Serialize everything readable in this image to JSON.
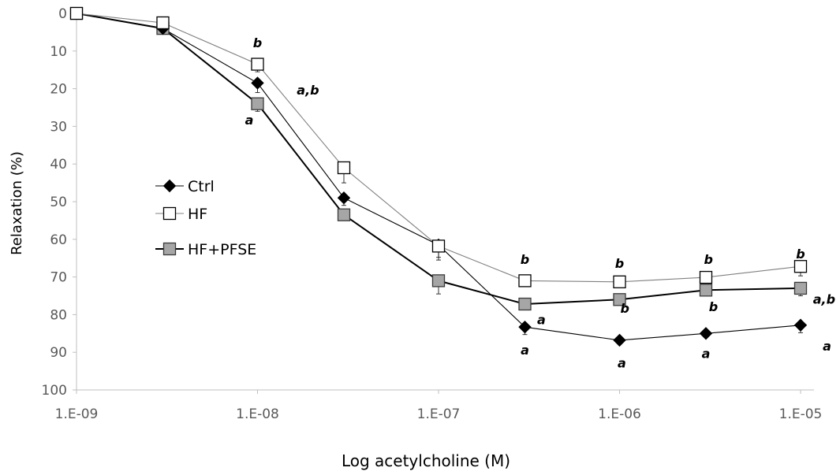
{
  "chart_data": {
    "type": "line",
    "xlabel": "Log acetylcholine (M)",
    "ylabel": "Relaxation (%)",
    "x_scale": "log",
    "x": [
      1e-09,
      3e-09,
      1e-08,
      3e-08,
      1e-07,
      3e-07,
      1e-06,
      3e-06,
      1e-05
    ],
    "x_tick_values": [
      1e-09,
      1e-08,
      1e-07,
      1e-06,
      1e-05
    ],
    "x_tick_labels": [
      "1.E-09",
      "1.E-08",
      "1.E-07",
      "1.E-06",
      "1.E-05"
    ],
    "ylim": [
      0,
      100
    ],
    "y_inverted": true,
    "y_ticks": [
      0,
      10,
      20,
      30,
      40,
      50,
      60,
      70,
      80,
      90,
      100
    ],
    "legend_position": "left",
    "series": [
      {
        "name": "Ctrl",
        "marker": "diamond",
        "color": "#000000",
        "values": [
          0,
          4,
          18.5,
          49,
          61.5,
          83.3,
          86.8,
          85,
          82.8
        ],
        "errors": [
          0,
          0,
          2.5,
          2,
          4,
          2,
          1,
          1,
          2
        ]
      },
      {
        "name": "HF",
        "marker": "square",
        "color": "#ffffff",
        "values": [
          0,
          2.5,
          13.5,
          41,
          61.8,
          71,
          71.3,
          70.1,
          67.2
        ],
        "errors": [
          0,
          0,
          2,
          4,
          3,
          1.5,
          1.5,
          1,
          2.5
        ]
      },
      {
        "name": "HF+PFSE",
        "marker": "square",
        "color": "#a6a6a6",
        "values": [
          0,
          4,
          24,
          53.5,
          71,
          77.2,
          76,
          73.5,
          73
        ],
        "errors": [
          0,
          0,
          2,
          1.5,
          3.5,
          1,
          1,
          1,
          2
        ]
      }
    ],
    "annotations": [
      {
        "text": "b",
        "x": 1e-08,
        "y": 8
      },
      {
        "text": "a,b",
        "x": 1.9e-08,
        "y": 20.5
      },
      {
        "text": "a",
        "x": 9e-09,
        "y": 28.5
      },
      {
        "text": "b",
        "x": 3e-07,
        "y": 65.5
      },
      {
        "text": "a",
        "x": 3.7e-07,
        "y": 81.5
      },
      {
        "text": "a",
        "x": 3e-07,
        "y": 89.5
      },
      {
        "text": "b",
        "x": 1e-06,
        "y": 66.5
      },
      {
        "text": "b",
        "x": 1.07e-06,
        "y": 78.5
      },
      {
        "text": "a",
        "x": 1.03e-06,
        "y": 93
      },
      {
        "text": "b",
        "x": 3.1e-06,
        "y": 65.5
      },
      {
        "text": "b",
        "x": 3.3e-06,
        "y": 78
      },
      {
        "text": "a",
        "x": 3e-06,
        "y": 90.5
      },
      {
        "text": "b",
        "x": 1e-05,
        "y": 64
      },
      {
        "text": "a,b",
        "x": 1.35e-05,
        "y": 76
      },
      {
        "text": "a",
        "x": 1.4e-05,
        "y": 88.5
      }
    ]
  }
}
